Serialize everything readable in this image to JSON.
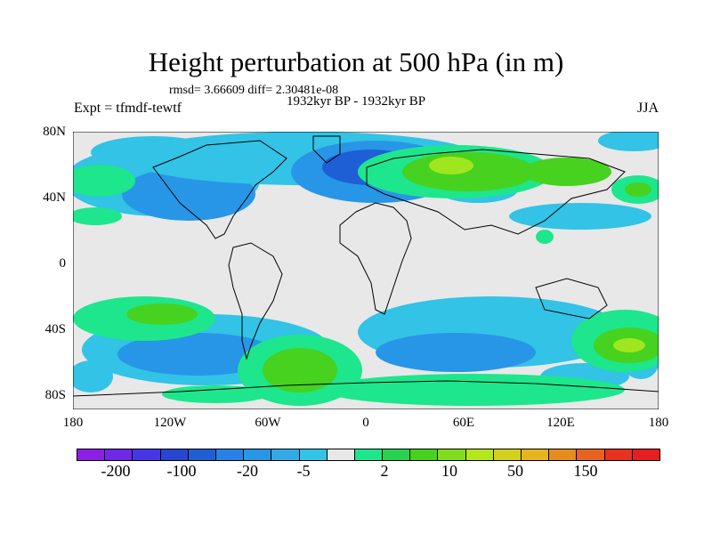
{
  "title": "Height perturbation at 500 hPa (in m)",
  "stats": "rmsd= 3.66609 diff= 2.30481e-08",
  "period": "1932kyr BP - 1932kyr BP",
  "experiment": "Expt = tfmdf-tewtf",
  "season": "JJA",
  "map": {
    "lat_ticks": [
      "80N",
      "40N",
      "0",
      "40S",
      "80S"
    ],
    "lon_ticks": [
      "180",
      "120W",
      "60W",
      "0",
      "60E",
      "120E",
      "180"
    ],
    "colors": {
      "neg_strong": "#1f5fd6",
      "neg_mid": "#2896e6",
      "neg_weak": "#32c3e6",
      "neutral": "#e8e8e8",
      "pos_weak": "#1ee68c",
      "pos_mid": "#46d21e",
      "pos_strong": "#a0e61e"
    }
  },
  "colorbar": {
    "colors": [
      "#8c1ee6",
      "#6e28e6",
      "#4637e6",
      "#2846d2",
      "#1f5fd6",
      "#2882e6",
      "#2896e6",
      "#32aae6",
      "#32c3e6",
      "#e8e8e8",
      "#1ee68c",
      "#28d250",
      "#46d21e",
      "#82dc1e",
      "#b4e61e",
      "#d2d21e",
      "#e6b41e",
      "#e68c1e",
      "#e6641e",
      "#e6321e",
      "#e61e1e"
    ],
    "labels": [
      "-200",
      "-100",
      "-20",
      "-5",
      "2",
      "10",
      "50",
      "150"
    ]
  }
}
